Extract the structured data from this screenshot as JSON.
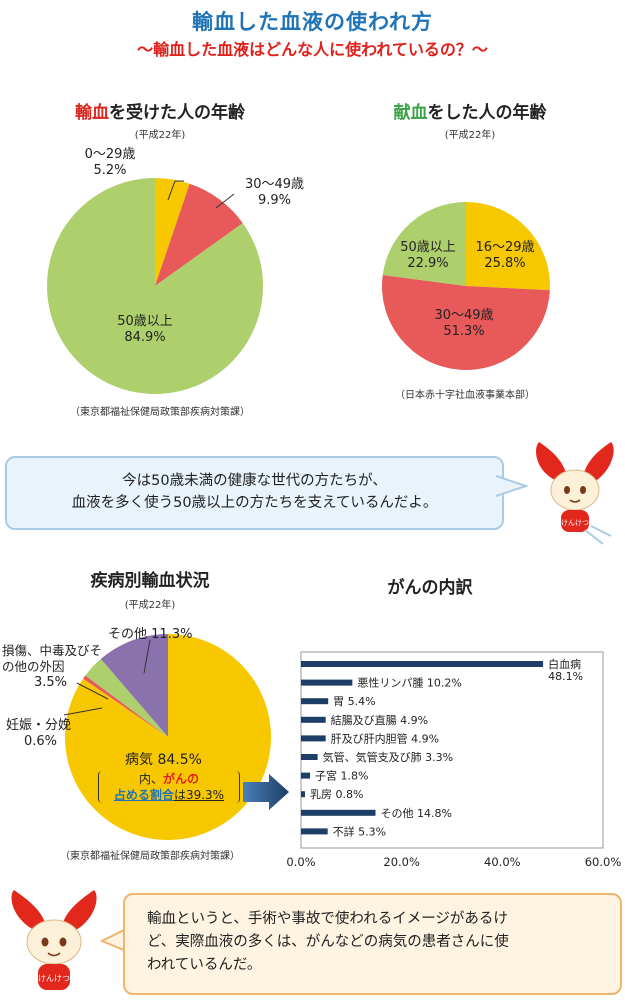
{
  "header": {
    "title": "輸血した血液の使われ方",
    "subtitle": "〜輸血した血液はどんな人に使われているの？〜"
  },
  "recipient_age": {
    "title_highlight": "輸血",
    "title_rest": "を受けた人の年齢",
    "year": "(平成22年)",
    "source": "（東京都福祉保健局政策部疾病対策課）"
  },
  "donor_age": {
    "title_highlight": "献血",
    "title_rest": "をした人の年齢",
    "year": "(平成22年)",
    "source": "（日本赤十字社血液事業本部）"
  },
  "disease_section": {
    "title": "疾病別輸血状況",
    "year": "(平成22年)",
    "source": "（東京都福祉保健局政策部疾病対策課）",
    "cancer_note_prefix": "内、",
    "cancer_note_highlight1": "がんの",
    "cancer_note_highlight2": "占める割合",
    "cancer_note_suffix": "は39.3%"
  },
  "cancer_section": {
    "title": "がんの内訳"
  },
  "bubble_top": {
    "line1": "今は50歳未満の健康な世代の方たちが、",
    "line2": "血液を多く使う50歳以上の方たちを支えているんだよ。"
  },
  "bubble_bottom": {
    "line1": "輸血というと、手術や事故で使われるイメージがあるけ",
    "line2": "ど、実際血液の多くは、がんなどの病気の患者さんに使",
    "line3": "われているんだ。"
  },
  "mascot": {
    "badge_text": "けんけつ"
  },
  "chart_data": [
    {
      "type": "pie",
      "title": "輸血を受けた人の年齢",
      "slices": [
        {
          "name": "0〜29歳",
          "value": 5.2,
          "label": "5.2%",
          "color": "#f7c800"
        },
        {
          "name": "30〜49歳",
          "value": 9.9,
          "label": "9.9%",
          "color": "#e8595a"
        },
        {
          "name": "50歳以上",
          "value": 84.9,
          "label": "84.9%",
          "color": "#add06c"
        }
      ]
    },
    {
      "type": "pie",
      "title": "献血をした人の年齢",
      "slices": [
        {
          "name": "16〜29歳",
          "value": 25.8,
          "label": "25.8%",
          "color": "#f7c800"
        },
        {
          "name": "30〜49歳",
          "value": 51.3,
          "label": "51.3%",
          "color": "#e8595a"
        },
        {
          "name": "50歳以上",
          "value": 22.9,
          "label": "22.9%",
          "color": "#add06c"
        }
      ]
    },
    {
      "type": "pie",
      "title": "疾病別輸血状況",
      "slices": [
        {
          "name": "病気",
          "value": 84.5,
          "label": "84.5%",
          "color": "#f7c800"
        },
        {
          "name": "妊娠・分娩",
          "value": 0.6,
          "label": "0.6%",
          "color": "#e8595a"
        },
        {
          "name": "損傷、中毒及びその他の外因",
          "value": 3.5,
          "label": "3.5%",
          "color": "#add06c"
        },
        {
          "name": "その他",
          "value": 11.3,
          "label": "11.3%",
          "color": "#8a72ad"
        }
      ]
    },
    {
      "type": "bar",
      "orientation": "horizontal",
      "title": "がんの内訳",
      "color": "#1d3e66",
      "categories": [
        "白血病",
        "悪性リンパ腫",
        "胃",
        "結腸及び直腸",
        "肝及び肝内胆管",
        "気管、気管支及び肺",
        "子宮",
        "乳房",
        "その他",
        "不詳"
      ],
      "values": [
        48.1,
        10.2,
        5.4,
        4.9,
        4.9,
        3.3,
        1.8,
        0.8,
        14.8,
        5.3
      ],
      "value_labels": [
        "48.1%",
        "10.2%",
        "5.4%",
        "4.9%",
        "4.9%",
        "3.3%",
        "1.8%",
        "0.8%",
        "14.8%",
        "5.3%"
      ],
      "xlim": [
        0,
        60
      ],
      "ticks": [
        "0.0%",
        "20.0%",
        "40.0%",
        "60.0%"
      ]
    }
  ]
}
